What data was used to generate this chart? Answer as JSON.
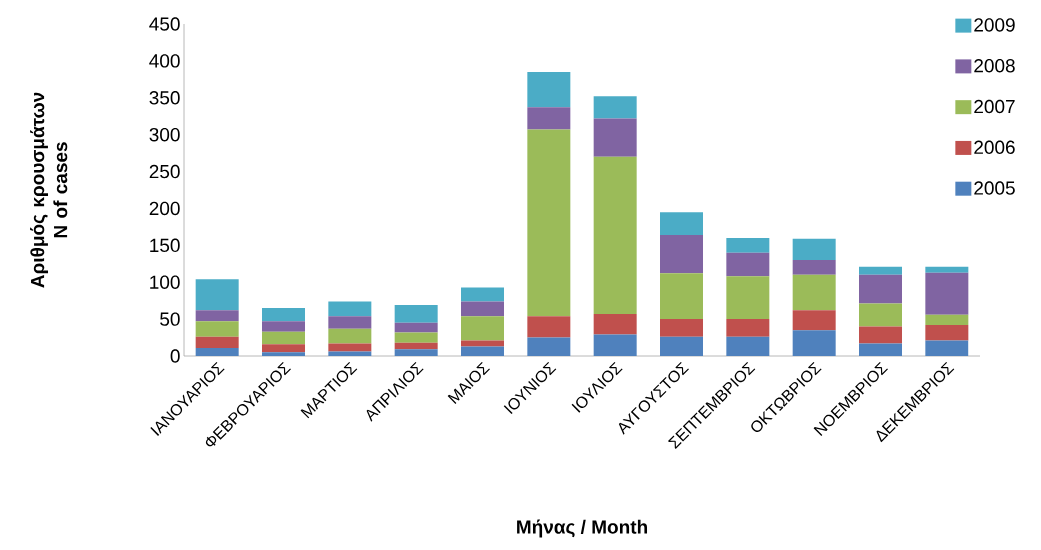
{
  "chart_data": {
    "type": "bar",
    "stacked": true,
    "xlabel": "**Μήνας / Month**",
    "ylabel": "**Αριθμός κρουσμάτων N of cases**",
    "categories": [
      "ΙΑΝΟΥΑΡΙΟΣ",
      "ΦΕΒΡΟΥΑΡΙΟΣ",
      "ΜΑΡΤΙΟΣ",
      "ΑΠΡΙΛΙΟΣ",
      "ΜΑΙΟΣ",
      "ΙΟΥΝΙΟΣ",
      "ΙΟΥΛΙΟΣ",
      "ΑΥΓΟΥΣΤΟΣ",
      "ΣΕΠΤΕΜΒΡΙΟΣ",
      "ΟΚΤΩΒΡΙΟΣ",
      "ΝΟΕΜΒΡΙΟΣ",
      "ΔΕΚΕΜΒΡΙΟΣ"
    ],
    "series": [
      {
        "name": "2005",
        "color": "#4f81bd",
        "values": [
          11,
          5,
          6,
          9,
          13,
          25,
          29,
          26,
          26,
          35,
          17,
          21
        ]
      },
      {
        "name": "2006",
        "color": "#c0504d",
        "values": [
          15,
          11,
          11,
          9,
          8,
          29,
          28,
          24,
          24,
          27,
          23,
          21
        ]
      },
      {
        "name": "2007",
        "color": "#9bbb59",
        "values": [
          21,
          17,
          20,
          14,
          33,
          253,
          213,
          62,
          58,
          48,
          31,
          14
        ]
      },
      {
        "name": "2008",
        "color": "#8064a2",
        "values": [
          15,
          14,
          17,
          13,
          20,
          30,
          52,
          52,
          32,
          20,
          39,
          57
        ]
      },
      {
        "name": "2009",
        "color": "#4bacc6",
        "values": [
          42,
          18,
          20,
          24,
          19,
          48,
          30,
          31,
          20,
          29,
          11,
          8
        ]
      }
    ],
    "ylim": [
      0,
      450
    ],
    "yticks": [
      0,
      50,
      100,
      150,
      200,
      250,
      300,
      350,
      400,
      450
    ],
    "grid": false,
    "legend": "right"
  }
}
